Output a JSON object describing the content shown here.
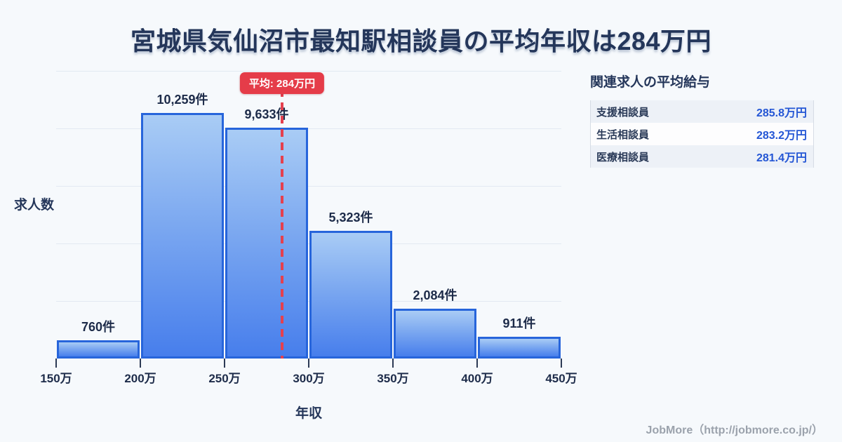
{
  "title": "宮城県気仙沼市最知駅相談員の平均年収は284万円",
  "chart_data": {
    "type": "bar",
    "title": "宮城県気仙沼市最知駅相談員の平均年収は284万円",
    "xlabel": "年収",
    "ylabel": "求人数",
    "x_tick_labels": [
      "150万",
      "200万",
      "250万",
      "300万",
      "350万",
      "400万",
      "450万"
    ],
    "bins": [
      {
        "range": "150万-200万",
        "count": 760
      },
      {
        "range": "200万-250万",
        "count": 10259
      },
      {
        "range": "250万-300万",
        "count": 9633
      },
      {
        "range": "300万-350万",
        "count": 5323
      },
      {
        "range": "350万-400万",
        "count": 2084
      },
      {
        "range": "400万-450万",
        "count": 911
      }
    ],
    "values": [
      760,
      10259,
      9633,
      5323,
      2084,
      911
    ],
    "value_labels": [
      "760件",
      "10,259件",
      "9,633件",
      "5,323件",
      "2,084件",
      "911件"
    ],
    "average_line": {
      "value": 284,
      "label": "平均: 284万円",
      "color": "#e53c49"
    },
    "ylim": [
      0,
      10700
    ],
    "grid": true,
    "legend_position": "none",
    "colors": {
      "bar_gradient_top": "#a9ccf5",
      "bar_gradient_bottom": "#477eec",
      "bar_border": "#2765db",
      "average_red": "#e53c49",
      "text_dark": "#24365a",
      "background": "#f6f9fc"
    }
  },
  "side_panel": {
    "heading": "関連求人の平均給与",
    "rows": [
      {
        "label": "支援相談員",
        "value": "285.8万円"
      },
      {
        "label": "生活相談員",
        "value": "283.2万円"
      },
      {
        "label": "医療相談員",
        "value": "281.4万円"
      }
    ]
  },
  "footer": {
    "credit": "JobMore（http://jobmore.co.jp/）"
  }
}
